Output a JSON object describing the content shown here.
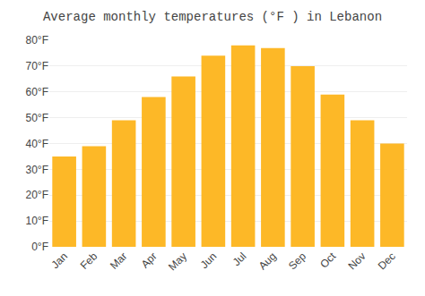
{
  "chart_data": {
    "type": "bar",
    "title": "Average monthly temperatures (°F ) in Lebanon",
    "categories": [
      "Jan",
      "Feb",
      "Mar",
      "Apr",
      "May",
      "Jun",
      "Jul",
      "Aug",
      "Sep",
      "Oct",
      "Nov",
      "Dec"
    ],
    "values": [
      35,
      39,
      49,
      58,
      66,
      74,
      78,
      77,
      70,
      59,
      49,
      40
    ],
    "color": "#FDB827",
    "ylim": [
      0,
      80
    ],
    "yticks": [
      {
        "value": 0,
        "label": "0°F"
      },
      {
        "value": 10,
        "label": "10°F"
      },
      {
        "value": 20,
        "label": "20°F"
      },
      {
        "value": 30,
        "label": "30°F"
      },
      {
        "value": 40,
        "label": "40°F"
      },
      {
        "value": 50,
        "label": "50°F"
      },
      {
        "value": 60,
        "label": "60°F"
      },
      {
        "value": 70,
        "label": "70°F"
      },
      {
        "value": 80,
        "label": "80°F"
      }
    ],
    "grid": true
  }
}
